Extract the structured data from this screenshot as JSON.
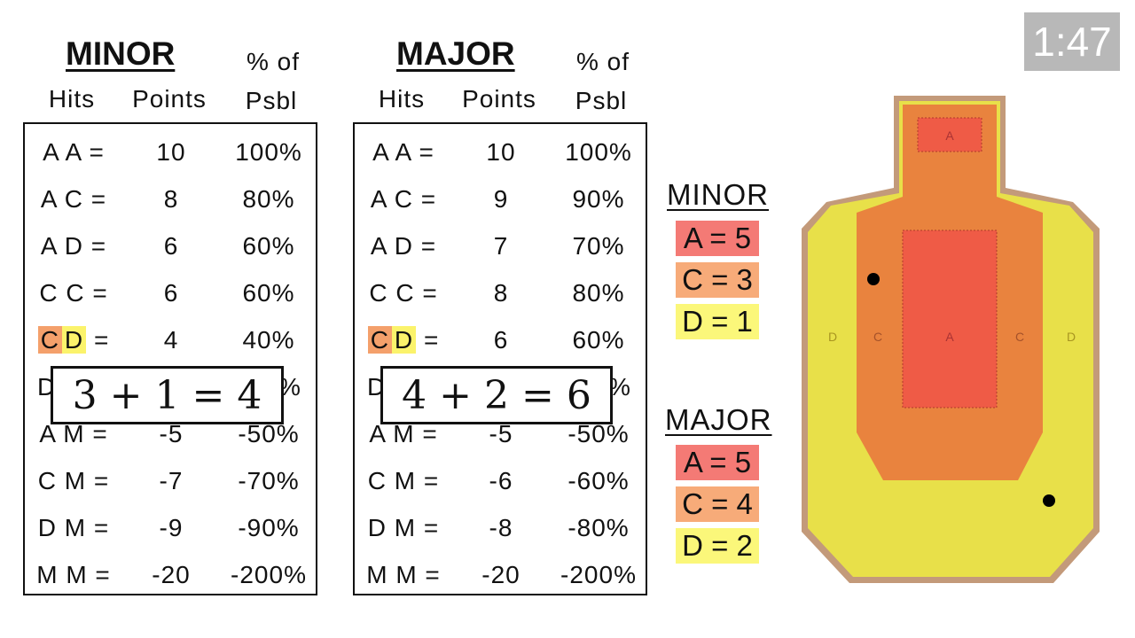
{
  "timer": "1:47",
  "minor_table": {
    "title": "MINOR",
    "headers": {
      "hits": "Hits",
      "points": "Points",
      "pct_line1": "% of",
      "pct_line2": "Psbl"
    },
    "rows": [
      {
        "hits": "A A =",
        "points": "10",
        "pct": "100%"
      },
      {
        "hits": "A C =",
        "points": "8",
        "pct": "80%"
      },
      {
        "hits": "A D =",
        "points": "6",
        "pct": "60%"
      },
      {
        "hits": "C C =",
        "points": "6",
        "pct": "60%"
      },
      {
        "hits_c": "C",
        "hits_d": "D",
        "hits_eq": "=",
        "points": "4",
        "pct": "40%"
      },
      {
        "hits": "D",
        "points": "",
        "pct": "%"
      },
      {
        "hits": "A M =",
        "points": "-5",
        "pct": "-50%"
      },
      {
        "hits": "C M =",
        "points": "-7",
        "pct": "-70%"
      },
      {
        "hits": "D M =",
        "points": "-9",
        "pct": "-90%"
      },
      {
        "hits": "M M =",
        "points": "-20",
        "pct": "-200%"
      }
    ],
    "equation": "3 + 1 = 4"
  },
  "major_table": {
    "title": "MAJOR",
    "headers": {
      "hits": "Hits",
      "points": "Points",
      "pct_line1": "% of",
      "pct_line2": "Psbl"
    },
    "rows": [
      {
        "hits": "A A =",
        "points": "10",
        "pct": "100%"
      },
      {
        "hits": "A C =",
        "points": "9",
        "pct": "90%"
      },
      {
        "hits": "A D =",
        "points": "7",
        "pct": "70%"
      },
      {
        "hits": "C C =",
        "points": "8",
        "pct": "80%"
      },
      {
        "hits_c": "C",
        "hits_d": "D",
        "hits_eq": "=",
        "points": "6",
        "pct": "60%"
      },
      {
        "hits": "D",
        "points": "",
        "pct": "%"
      },
      {
        "hits": "A M =",
        "points": "-5",
        "pct": "-50%"
      },
      {
        "hits": "C M =",
        "points": "-6",
        "pct": "-60%"
      },
      {
        "hits": "D M =",
        "points": "-8",
        "pct": "-80%"
      },
      {
        "hits": "M M =",
        "points": "-20",
        "pct": "-200%"
      }
    ],
    "equation": "4 + 2 = 6"
  },
  "minor_points": {
    "title": "MINOR",
    "a": "A = 5",
    "c": "C = 3",
    "d": "D = 1"
  },
  "major_points": {
    "title": "MAJOR",
    "a": "A = 5",
    "c": "C = 4",
    "d": "D = 2"
  },
  "target": {
    "head_zone": "A",
    "zone_d_left": "D",
    "zone_c_left": "C",
    "zone_a": "A",
    "zone_c_right": "C",
    "zone_d_right": "D"
  },
  "colors": {
    "a_zone": "#f47a75",
    "c_zone": "#f7ab79",
    "d_zone": "#fbf77a",
    "target_border": "#c39a7a"
  }
}
